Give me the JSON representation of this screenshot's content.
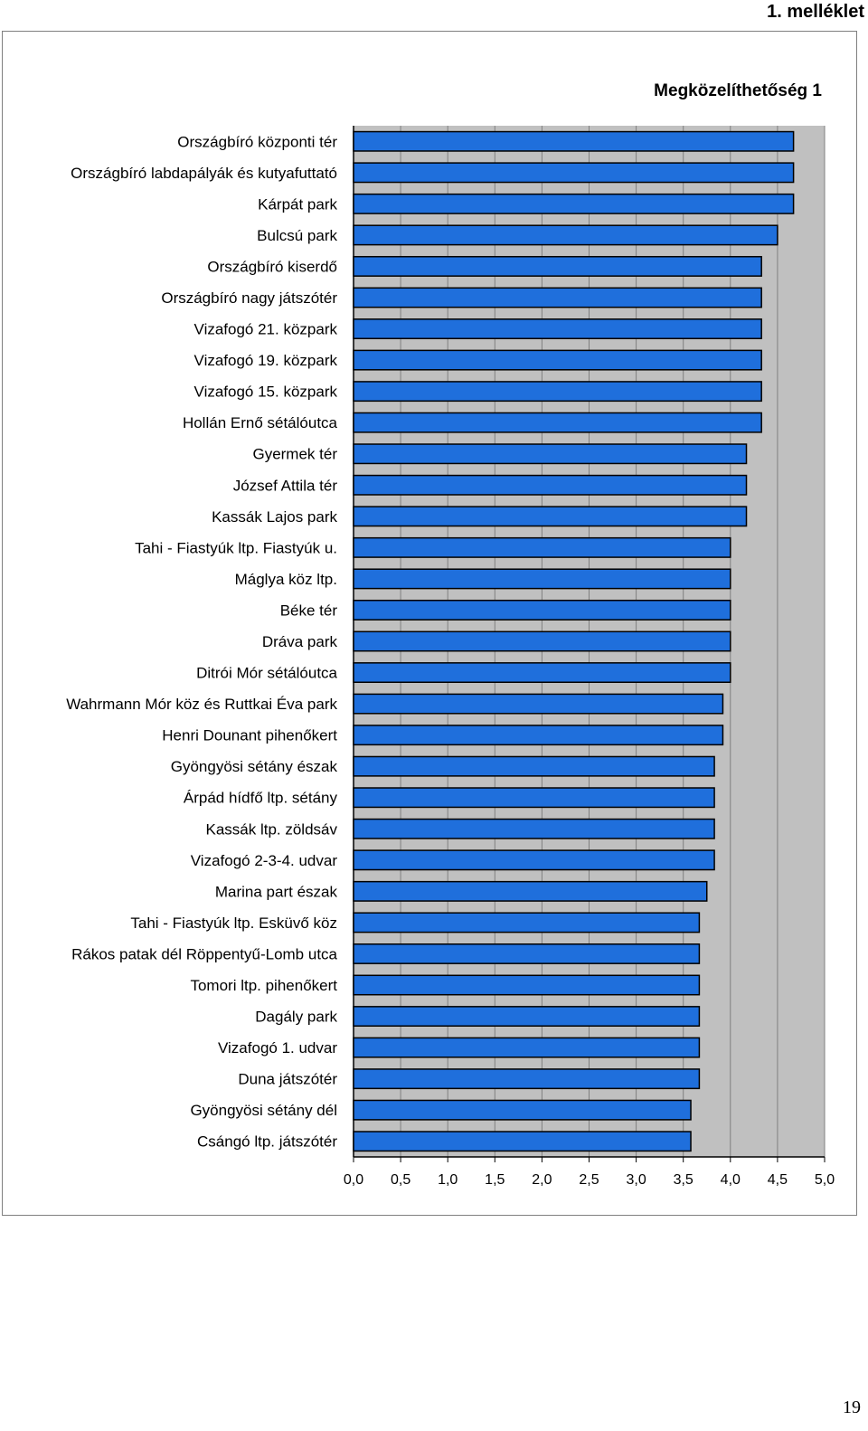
{
  "page": {
    "header": "1. melléklet",
    "page_number": "19"
  },
  "chart_data": {
    "type": "bar",
    "orientation": "horizontal",
    "title": "Megközelíthetőség 1",
    "xlabel": "",
    "ylabel": "",
    "xlim": [
      0,
      5
    ],
    "x_ticks": [
      "0,0",
      "0,5",
      "1,0",
      "1,5",
      "2,0",
      "2,5",
      "3,0",
      "3,5",
      "4,0",
      "4,5",
      "5,0"
    ],
    "grid": "vertical",
    "legend": "none",
    "colors": {
      "bar": "#1f6fdc",
      "bar_border": "#000000",
      "plot_bg": "#c0c0c0",
      "grid": "#000000"
    },
    "categories": [
      "Országbíró központi tér",
      "Országbíró labdapályák és kutyafuttató",
      "Kárpát park",
      "Bulcsú park",
      "Országbíró kiserdő",
      "Országbíró nagy játszótér",
      "Vizafogó 21. közpark",
      "Vizafogó 19. közpark",
      "Vizafogó 15. közpark",
      "Hollán Ernő sétálóutca",
      "Gyermek tér",
      "József Attila tér",
      "Kassák Lajos park",
      "Tahi - Fiastyúk ltp. Fiastyúk u.",
      "Máglya köz ltp.",
      "Béke tér",
      "Dráva park",
      "Ditrói Mór sétálóutca",
      "Wahrmann Mór köz és Ruttkai Éva park",
      "Henri Dounant pihenőkert",
      "Gyöngyösi sétány észak",
      "Árpád hídfő ltp. sétány",
      "Kassák ltp. zöldsáv",
      "Vizafogó 2-3-4. udvar",
      "Marina part észak",
      "Tahi - Fiastyúk ltp. Esküvő köz",
      "Rákos patak dél Röppentyű-Lomb utca",
      "Tomori ltp. pihenőkert",
      "Dagály park",
      "Vizafogó 1. udvar",
      "Duna játszótér",
      "Gyöngyösi sétány dél",
      "Csángó ltp. játszótér"
    ],
    "values": [
      4.67,
      4.67,
      4.67,
      4.5,
      4.33,
      4.33,
      4.33,
      4.33,
      4.33,
      4.33,
      4.17,
      4.17,
      4.17,
      4.0,
      4.0,
      4.0,
      4.0,
      4.0,
      3.92,
      3.92,
      3.83,
      3.83,
      3.83,
      3.83,
      3.75,
      3.67,
      3.67,
      3.67,
      3.67,
      3.67,
      3.67,
      3.58,
      3.58
    ]
  }
}
